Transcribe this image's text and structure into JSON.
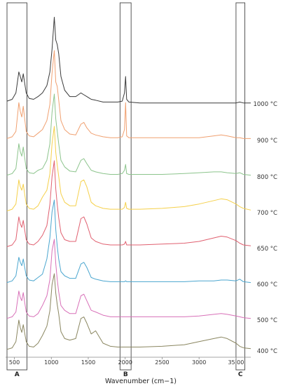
{
  "chart_data": {
    "type": "line",
    "title": "",
    "xlabel": "Wavenumber (cm−1)",
    "ylabel": "",
    "xlim": [
      400,
      3700
    ],
    "x_ticks": [
      "500",
      "1000",
      "1500",
      "2000",
      "2500",
      "3000",
      "35 00"
    ],
    "x_tick_values": [
      500,
      1000,
      1500,
      2000,
      2500,
      3000,
      3500
    ],
    "grid": false,
    "legend": "none",
    "stacking": "offset",
    "regions": [
      {
        "label": "A",
        "x_range": [
          400,
          670
        ]
      },
      {
        "label": "B",
        "x_range": [
          1930,
          2080
        ]
      },
      {
        "label": "C",
        "x_range": [
          3500,
          3620
        ]
      }
    ],
    "series": [
      {
        "name": "1000 °C",
        "color": "#3a3a3a",
        "x": [
          400,
          470,
          520,
          560,
          580,
          600,
          620,
          660,
          700,
          760,
          820,
          880,
          940,
          980,
          1010,
          1040,
          1060,
          1080,
          1100,
          1130,
          1180,
          1250,
          1330,
          1400,
          1440,
          1480,
          1540,
          1600,
          1700,
          1800,
          1900,
          1960,
          1990,
          2005,
          2020,
          2050,
          2200,
          2500,
          2800,
          3000,
          3200,
          3300,
          3380,
          3500,
          3550,
          3600,
          3700
        ],
        "y": [
          0.03,
          0.05,
          0.12,
          0.35,
          0.3,
          0.24,
          0.33,
          0.12,
          0.06,
          0.05,
          0.08,
          0.12,
          0.2,
          0.35,
          0.6,
          0.95,
          0.7,
          0.65,
          0.55,
          0.3,
          0.15,
          0.08,
          0.08,
          0.12,
          0.1,
          0.08,
          0.05,
          0.04,
          0.02,
          0.02,
          0.02,
          0.03,
          0.12,
          0.3,
          0.05,
          0.02,
          0.01,
          0.01,
          0.01,
          0.01,
          0.01,
          0.01,
          0.01,
          0.01,
          0.02,
          0.01,
          0.01
        ]
      },
      {
        "name": "900 °C",
        "color": "#f0a070",
        "x": [
          400,
          470,
          520,
          560,
          580,
          600,
          620,
          660,
          700,
          760,
          820,
          880,
          940,
          980,
          1010,
          1040,
          1060,
          1080,
          1100,
          1130,
          1180,
          1250,
          1330,
          1400,
          1440,
          1480,
          1540,
          1600,
          1700,
          1800,
          1900,
          1960,
          1990,
          2005,
          2020,
          2050,
          2200,
          2500,
          2800,
          3000,
          3200,
          3300,
          3380,
          3500,
          3550,
          3600,
          3700
        ],
        "y": [
          0.02,
          0.04,
          0.1,
          0.42,
          0.32,
          0.26,
          0.38,
          0.1,
          0.05,
          0.04,
          0.08,
          0.12,
          0.22,
          0.4,
          0.75,
          1.0,
          0.65,
          0.6,
          0.45,
          0.22,
          0.12,
          0.07,
          0.06,
          0.18,
          0.2,
          0.14,
          0.08,
          0.06,
          0.04,
          0.03,
          0.03,
          0.04,
          0.12,
          0.42,
          0.05,
          0.03,
          0.03,
          0.03,
          0.03,
          0.03,
          0.05,
          0.06,
          0.05,
          0.03,
          0.03,
          0.02,
          0.02
        ]
      },
      {
        "name": "800 °C",
        "color": "#8cc48c",
        "x": [
          400,
          470,
          520,
          560,
          580,
          600,
          620,
          660,
          700,
          760,
          820,
          880,
          940,
          980,
          1010,
          1040,
          1060,
          1080,
          1100,
          1130,
          1180,
          1250,
          1330,
          1400,
          1440,
          1480,
          1540,
          1600,
          1700,
          1800,
          1900,
          1960,
          1990,
          2005,
          2020,
          2050,
          2200,
          2500,
          2800,
          3000,
          3200,
          3300,
          3380,
          3500,
          3550,
          3600,
          3700
        ],
        "y": [
          0.02,
          0.04,
          0.1,
          0.4,
          0.3,
          0.25,
          0.36,
          0.1,
          0.05,
          0.04,
          0.08,
          0.1,
          0.2,
          0.4,
          0.78,
          1.0,
          0.7,
          0.55,
          0.4,
          0.2,
          0.12,
          0.07,
          0.06,
          0.2,
          0.22,
          0.16,
          0.08,
          0.06,
          0.04,
          0.03,
          0.03,
          0.04,
          0.08,
          0.15,
          0.04,
          0.03,
          0.03,
          0.03,
          0.04,
          0.05,
          0.06,
          0.06,
          0.05,
          0.04,
          0.05,
          0.03,
          0.02
        ]
      },
      {
        "name": "700 °C",
        "color": "#f5d04a",
        "x": [
          400,
          470,
          520,
          560,
          580,
          600,
          620,
          660,
          700,
          760,
          820,
          880,
          940,
          980,
          1010,
          1040,
          1060,
          1080,
          1100,
          1130,
          1180,
          1250,
          1330,
          1400,
          1440,
          1480,
          1540,
          1600,
          1700,
          1800,
          1900,
          1960,
          1990,
          2005,
          2020,
          2050,
          2200,
          2500,
          2800,
          3000,
          3200,
          3300,
          3380,
          3500,
          3550,
          3600,
          3700
        ],
        "y": [
          0.02,
          0.04,
          0.1,
          0.38,
          0.3,
          0.26,
          0.33,
          0.1,
          0.05,
          0.04,
          0.08,
          0.18,
          0.26,
          0.45,
          0.8,
          1.0,
          0.7,
          0.55,
          0.42,
          0.22,
          0.12,
          0.08,
          0.08,
          0.36,
          0.38,
          0.3,
          0.12,
          0.08,
          0.05,
          0.04,
          0.04,
          0.04,
          0.06,
          0.12,
          0.05,
          0.04,
          0.04,
          0.05,
          0.07,
          0.1,
          0.14,
          0.16,
          0.15,
          0.1,
          0.07,
          0.05,
          0.03
        ]
      },
      {
        "name": "650 °C",
        "color": "#e06070",
        "x": [
          400,
          470,
          520,
          560,
          580,
          600,
          620,
          660,
          700,
          760,
          820,
          880,
          940,
          980,
          1010,
          1040,
          1060,
          1080,
          1100,
          1130,
          1180,
          1250,
          1330,
          1400,
          1440,
          1480,
          1540,
          1600,
          1700,
          1800,
          1900,
          1960,
          1990,
          2005,
          2020,
          2050,
          2200,
          2500,
          2800,
          3000,
          3200,
          3300,
          3380,
          3500,
          3550,
          3600,
          3700
        ],
        "y": [
          0.02,
          0.04,
          0.1,
          0.36,
          0.28,
          0.24,
          0.32,
          0.1,
          0.05,
          0.04,
          0.08,
          0.15,
          0.26,
          0.5,
          0.82,
          1.0,
          0.68,
          0.5,
          0.35,
          0.18,
          0.1,
          0.08,
          0.08,
          0.34,
          0.36,
          0.28,
          0.12,
          0.08,
          0.05,
          0.04,
          0.04,
          0.04,
          0.05,
          0.08,
          0.04,
          0.04,
          0.04,
          0.05,
          0.06,
          0.08,
          0.12,
          0.14,
          0.13,
          0.09,
          0.06,
          0.04,
          0.03
        ]
      },
      {
        "name": "600 °C",
        "color": "#4ba6cf",
        "x": [
          400,
          470,
          520,
          560,
          580,
          600,
          620,
          660,
          700,
          760,
          820,
          880,
          940,
          980,
          1010,
          1040,
          1060,
          1080,
          1100,
          1130,
          1180,
          1250,
          1330,
          1400,
          1440,
          1480,
          1540,
          1600,
          1700,
          1800,
          1900,
          1960,
          1990,
          2005,
          2020,
          2050,
          2200,
          2500,
          2800,
          3000,
          3200,
          3300,
          3380,
          3500,
          3550,
          3600,
          3700
        ],
        "y": [
          0.02,
          0.04,
          0.1,
          0.32,
          0.26,
          0.22,
          0.3,
          0.1,
          0.05,
          0.04,
          0.08,
          0.12,
          0.3,
          0.55,
          0.86,
          1.0,
          0.65,
          0.45,
          0.3,
          0.15,
          0.1,
          0.07,
          0.07,
          0.24,
          0.26,
          0.2,
          0.08,
          0.06,
          0.04,
          0.03,
          0.03,
          0.03,
          0.03,
          0.04,
          0.03,
          0.03,
          0.03,
          0.03,
          0.03,
          0.04,
          0.04,
          0.05,
          0.05,
          0.04,
          0.06,
          0.03,
          0.02
        ]
      },
      {
        "name": "500 °C",
        "color": "#d870b8",
        "x": [
          400,
          470,
          520,
          560,
          580,
          600,
          620,
          660,
          700,
          760,
          820,
          880,
          940,
          980,
          1010,
          1040,
          1060,
          1080,
          1100,
          1130,
          1180,
          1250,
          1330,
          1400,
          1440,
          1480,
          1540,
          1600,
          1700,
          1800,
          1900,
          1960,
          1990,
          2005,
          2020,
          2050,
          2200,
          2500,
          2800,
          3000,
          3200,
          3300,
          3380,
          3500,
          3550,
          3600,
          3700
        ],
        "y": [
          0.02,
          0.04,
          0.1,
          0.36,
          0.28,
          0.24,
          0.34,
          0.1,
          0.05,
          0.04,
          0.08,
          0.18,
          0.3,
          0.5,
          0.86,
          1.0,
          0.7,
          0.5,
          0.35,
          0.18,
          0.12,
          0.08,
          0.08,
          0.3,
          0.32,
          0.24,
          0.12,
          0.1,
          0.06,
          0.04,
          0.04,
          0.04,
          0.04,
          0.04,
          0.04,
          0.04,
          0.04,
          0.04,
          0.04,
          0.05,
          0.07,
          0.08,
          0.07,
          0.05,
          0.04,
          0.03,
          0.02
        ]
      },
      {
        "name": "400 °C",
        "color": "#8a8660",
        "x": [
          400,
          470,
          520,
          560,
          580,
          600,
          620,
          660,
          700,
          760,
          820,
          880,
          940,
          980,
          1010,
          1040,
          1060,
          1080,
          1100,
          1130,
          1180,
          1250,
          1330,
          1400,
          1440,
          1480,
          1540,
          1600,
          1700,
          1800,
          1900,
          1960,
          1990,
          2005,
          2020,
          2050,
          2200,
          2500,
          2800,
          3000,
          3200,
          3300,
          3380,
          3500,
          3550,
          3600,
          3700
        ],
        "y": [
          0.02,
          0.04,
          0.12,
          0.4,
          0.3,
          0.24,
          0.34,
          0.12,
          0.06,
          0.05,
          0.1,
          0.2,
          0.32,
          0.52,
          0.86,
          1.0,
          0.75,
          0.6,
          0.48,
          0.25,
          0.16,
          0.14,
          0.16,
          0.42,
          0.44,
          0.36,
          0.22,
          0.26,
          0.1,
          0.06,
          0.05,
          0.05,
          0.05,
          0.05,
          0.05,
          0.05,
          0.05,
          0.06,
          0.08,
          0.12,
          0.16,
          0.18,
          0.16,
          0.1,
          0.06,
          0.04,
          0.03
        ]
      }
    ]
  }
}
